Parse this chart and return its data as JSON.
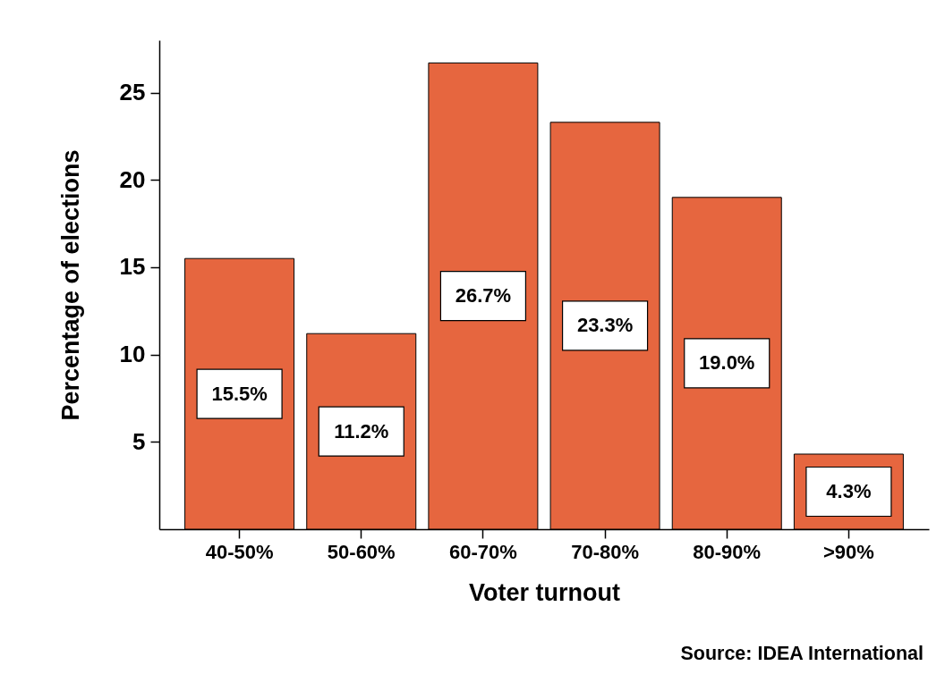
{
  "chart_data": {
    "type": "bar",
    "xlabel": "Voter turnout",
    "ylabel": "Percentage of elections",
    "categories": [
      "40-50%",
      "50-60%",
      "60-70%",
      "70-80%",
      "80-90%",
      ">90%"
    ],
    "values": [
      15.5,
      11.2,
      26.7,
      23.3,
      19.0,
      4.3
    ],
    "color": "#e6663f",
    "value_labels": [
      "15.5%",
      "11.2%",
      "26.7%",
      "23.3%",
      "19.0%",
      "4.3%"
    ],
    "ylim": [
      0,
      28
    ],
    "yticks": [
      5,
      10,
      15,
      20,
      25
    ],
    "grid": false,
    "annotations": [
      "Source: IDEA International"
    ]
  }
}
